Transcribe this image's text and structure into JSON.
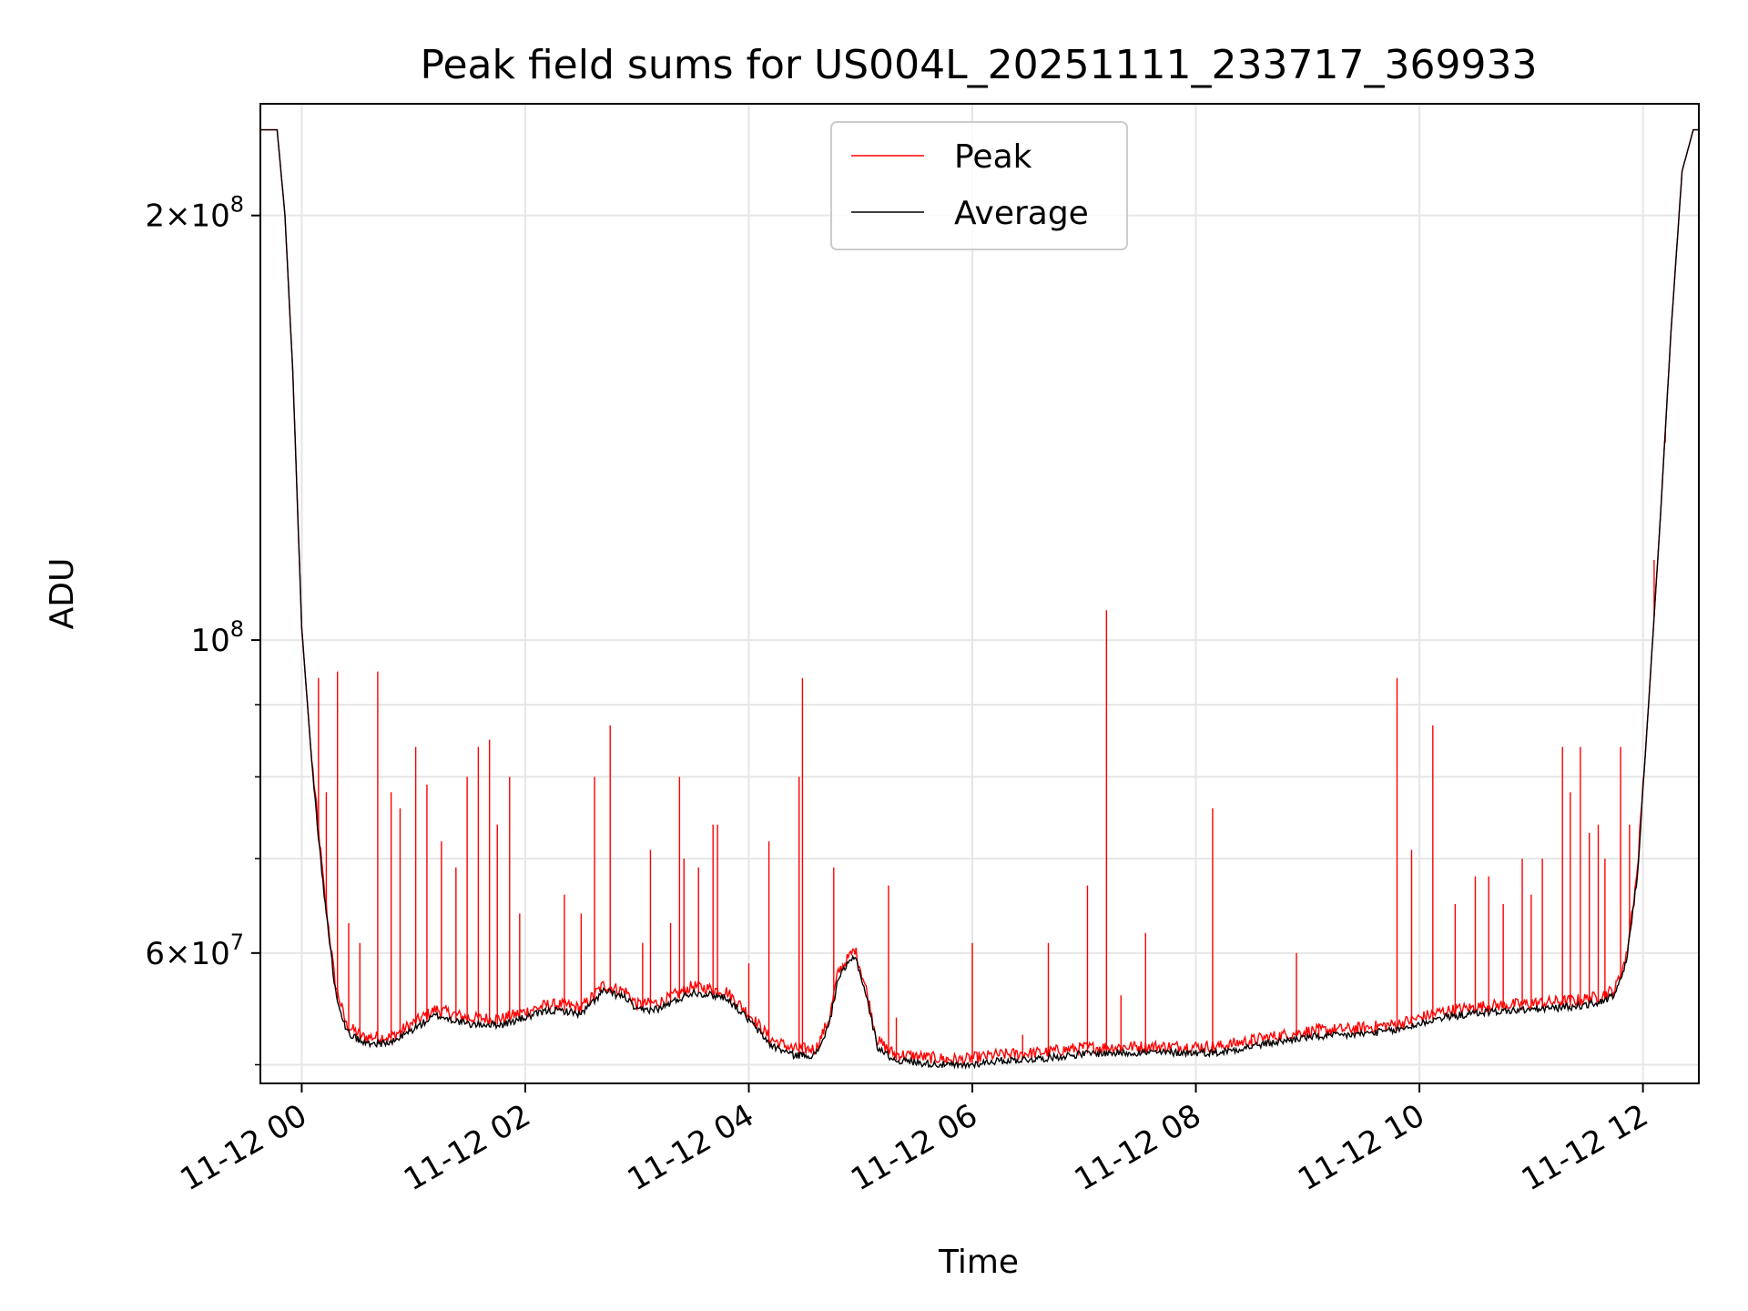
{
  "chart_data": {
    "type": "line",
    "title": "Peak field sums for US004L_20251111_233717_369933",
    "xlabel": "Time",
    "ylabel": "ADU",
    "yscale": "log",
    "grid": true,
    "legend_position": "top-center",
    "x_unit": "hours since 11-12 00:00",
    "xlim": [
      -0.37,
      12.5
    ],
    "ylim": [
      48500000,
      240000000
    ],
    "x_ticks": [
      {
        "value": 0,
        "label": "11-12 00"
      },
      {
        "value": 2,
        "label": "11-12 02"
      },
      {
        "value": 4,
        "label": "11-12 04"
      },
      {
        "value": 6,
        "label": "11-12 06"
      },
      {
        "value": 8,
        "label": "11-12 08"
      },
      {
        "value": 10,
        "label": "11-12 10"
      },
      {
        "value": 12,
        "label": "11-12 12"
      }
    ],
    "y_major_ticks": [
      {
        "value": 60000000,
        "mantissa": "6",
        "exp": "7"
      },
      {
        "value": 100000000,
        "mantissa": "",
        "exp": "8"
      },
      {
        "value": 200000000,
        "mantissa": "2",
        "exp": "8"
      }
    ],
    "y_minor_ticks": [
      50000000,
      70000000,
      80000000,
      90000000
    ],
    "series": [
      {
        "name": "Peak",
        "color": "#ff0000",
        "baseline_ref": "Average",
        "spikes": [
          [
            0.15,
            94000000
          ],
          [
            0.22,
            78000000
          ],
          [
            0.32,
            95000000
          ],
          [
            0.42,
            63000000
          ],
          [
            0.52,
            61000000
          ],
          [
            0.68,
            95000000
          ],
          [
            0.8,
            78000000
          ],
          [
            0.88,
            76000000
          ],
          [
            1.02,
            84000000
          ],
          [
            1.12,
            79000000
          ],
          [
            1.25,
            72000000
          ],
          [
            1.38,
            69000000
          ],
          [
            1.48,
            80000000
          ],
          [
            1.58,
            84000000
          ],
          [
            1.68,
            85000000
          ],
          [
            1.75,
            74000000
          ],
          [
            1.86,
            80000000
          ],
          [
            1.95,
            64000000
          ],
          [
            2.35,
            66000000
          ],
          [
            2.5,
            64000000
          ],
          [
            2.62,
            80000000
          ],
          [
            2.76,
            87000000
          ],
          [
            3.05,
            61000000
          ],
          [
            3.12,
            71000000
          ],
          [
            3.3,
            63000000
          ],
          [
            3.38,
            80000000
          ],
          [
            3.42,
            70000000
          ],
          [
            3.55,
            69000000
          ],
          [
            3.68,
            74000000
          ],
          [
            3.72,
            74000000
          ],
          [
            4.0,
            59000000
          ],
          [
            4.18,
            72000000
          ],
          [
            4.45,
            80000000
          ],
          [
            4.48,
            94000000
          ],
          [
            4.76,
            69000000
          ],
          [
            5.25,
            67000000
          ],
          [
            5.32,
            54000000
          ],
          [
            5.77,
            50500000
          ],
          [
            6.0,
            61000000
          ],
          [
            6.45,
            52500000
          ],
          [
            6.68,
            61000000
          ],
          [
            7.03,
            67000000
          ],
          [
            7.2,
            105000000
          ],
          [
            7.33,
            56000000
          ],
          [
            7.55,
            62000000
          ],
          [
            8.15,
            76000000
          ],
          [
            8.5,
            52200000
          ],
          [
            8.9,
            60000000
          ],
          [
            9.1,
            53500000
          ],
          [
            9.45,
            53500000
          ],
          [
            9.8,
            94000000
          ],
          [
            9.93,
            71000000
          ],
          [
            10.12,
            87000000
          ],
          [
            10.32,
            65000000
          ],
          [
            10.5,
            68000000
          ],
          [
            10.62,
            68000000
          ],
          [
            10.75,
            65000000
          ],
          [
            10.92,
            70000000
          ],
          [
            11.0,
            66000000
          ],
          [
            11.1,
            70000000
          ],
          [
            11.28,
            84000000
          ],
          [
            11.35,
            78000000
          ],
          [
            11.44,
            84000000
          ],
          [
            11.52,
            73000000
          ],
          [
            11.6,
            74000000
          ],
          [
            11.66,
            70000000
          ],
          [
            11.8,
            84000000
          ],
          [
            11.88,
            74000000
          ],
          [
            12.1,
            114000000
          ],
          [
            12.2,
            138000000
          ]
        ]
      },
      {
        "name": "Average",
        "color": "#000000",
        "points": [
          [
            -0.37,
            230000000
          ],
          [
            -0.22,
            230000000
          ],
          [
            -0.15,
            200000000
          ],
          [
            -0.08,
            155000000
          ],
          [
            0.0,
            102000000
          ],
          [
            0.1,
            80000000
          ],
          [
            0.2,
            66000000
          ],
          [
            0.3,
            56500000
          ],
          [
            0.4,
            52800000
          ],
          [
            0.55,
            51800000
          ],
          [
            0.8,
            51800000
          ],
          [
            1.0,
            53000000
          ],
          [
            1.2,
            54200000
          ],
          [
            1.5,
            53400000
          ],
          [
            1.8,
            53400000
          ],
          [
            2.0,
            54000000
          ],
          [
            2.2,
            54600000
          ],
          [
            2.35,
            54600000
          ],
          [
            2.5,
            54300000
          ],
          [
            2.7,
            56400000
          ],
          [
            2.9,
            55800000
          ],
          [
            3.0,
            54600000
          ],
          [
            3.2,
            54800000
          ],
          [
            3.5,
            56300000
          ],
          [
            3.8,
            55800000
          ],
          [
            4.0,
            53800000
          ],
          [
            4.2,
            51600000
          ],
          [
            4.4,
            50800000
          ],
          [
            4.6,
            50800000
          ],
          [
            4.72,
            53400000
          ],
          [
            4.8,
            57600000
          ],
          [
            4.95,
            59800000
          ],
          [
            5.05,
            56000000
          ],
          [
            5.15,
            51500000
          ],
          [
            5.3,
            50400000
          ],
          [
            5.6,
            50100000
          ],
          [
            5.9,
            49900000
          ],
          [
            6.2,
            50300000
          ],
          [
            6.6,
            50500000
          ],
          [
            7.0,
            50900000
          ],
          [
            7.4,
            51000000
          ],
          [
            7.8,
            51000000
          ],
          [
            8.2,
            51000000
          ],
          [
            8.6,
            51700000
          ],
          [
            9.0,
            52300000
          ],
          [
            9.4,
            52500000
          ],
          [
            9.8,
            52900000
          ],
          [
            10.2,
            54000000
          ],
          [
            10.6,
            54500000
          ],
          [
            11.0,
            54700000
          ],
          [
            11.4,
            55000000
          ],
          [
            11.6,
            55300000
          ],
          [
            11.75,
            56000000
          ],
          [
            11.85,
            59000000
          ],
          [
            11.95,
            68000000
          ],
          [
            12.05,
            90000000
          ],
          [
            12.15,
            120000000
          ],
          [
            12.25,
            165000000
          ],
          [
            12.35,
            215000000
          ],
          [
            12.45,
            230000000
          ],
          [
            12.5,
            230000000
          ]
        ]
      }
    ]
  }
}
